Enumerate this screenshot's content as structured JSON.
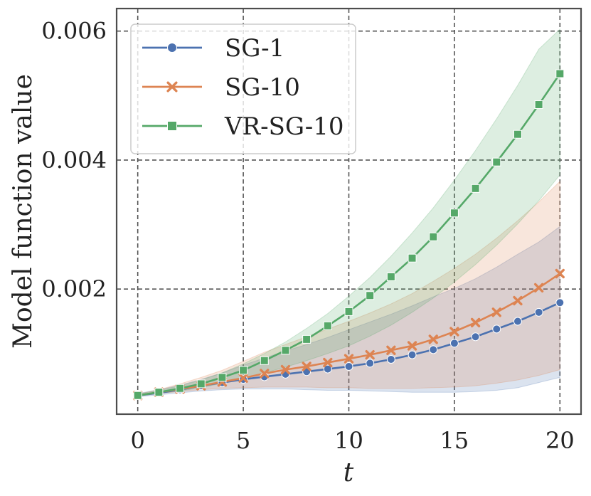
{
  "chart_data": {
    "type": "line",
    "title": "",
    "xlabel": "t",
    "ylabel": "Model function value",
    "xlim": [
      -1,
      21
    ],
    "ylim": [
      6e-05,
      0.00635
    ],
    "xticks": [
      0,
      5,
      10,
      15,
      20
    ],
    "xtick_labels": [
      "0",
      "5",
      "10",
      "15",
      "20"
    ],
    "yticks": [
      0.002,
      0.004,
      0.006
    ],
    "ytick_labels": [
      "0.002",
      "0.004",
      "0.006"
    ],
    "grid": true,
    "legend_position": "top-left",
    "x": [
      0,
      1,
      2,
      3,
      4,
      5,
      6,
      7,
      8,
      9,
      10,
      11,
      12,
      13,
      14,
      15,
      16,
      17,
      18,
      19,
      20
    ],
    "series": [
      {
        "name": "SG-1",
        "color": "#4c72b0",
        "marker": "circle",
        "values": [
          0.00035,
          0.00039,
          0.00044,
          0.0005,
          0.00055,
          0.0006,
          0.00064,
          0.00068,
          0.00072,
          0.00076,
          0.0008,
          0.00085,
          0.00091,
          0.00098,
          0.00106,
          0.00116,
          0.00126,
          0.00138,
          0.0015,
          0.00164,
          0.00179
        ],
        "lower": [
          0.00033,
          0.00036,
          0.00039,
          0.00042,
          0.00044,
          0.00045,
          0.00045,
          0.00045,
          0.00044,
          0.00043,
          0.00043,
          0.00042,
          0.00041,
          0.0004,
          0.0004,
          0.0004,
          0.00041,
          0.00043,
          0.00047,
          0.00055,
          0.00063
        ],
        "upper": [
          0.00038,
          0.00044,
          0.00051,
          0.0006,
          0.0007,
          0.00082,
          0.00093,
          0.00104,
          0.00114,
          0.00125,
          0.00137,
          0.00149,
          0.00161,
          0.00174,
          0.00188,
          0.00201,
          0.00216,
          0.00234,
          0.00254,
          0.00273,
          0.00297
        ]
      },
      {
        "name": "SG-10",
        "color": "#dd8452",
        "marker": "x",
        "values": [
          0.00035,
          0.0004,
          0.00045,
          0.0005,
          0.00056,
          0.00062,
          0.00069,
          0.00075,
          0.0008,
          0.00086,
          0.00092,
          0.00098,
          0.00105,
          0.00112,
          0.00122,
          0.00134,
          0.00148,
          0.00164,
          0.00182,
          0.00202,
          0.00224
        ],
        "lower": [
          0.00034,
          0.00038,
          0.00041,
          0.00044,
          0.00046,
          0.00047,
          0.00048,
          0.00048,
          0.00048,
          0.00047,
          0.00047,
          0.00046,
          0.00046,
          0.00046,
          0.00047,
          0.00048,
          0.0005,
          0.00054,
          0.00059,
          0.00066,
          0.00075
        ],
        "upper": [
          0.00037,
          0.00044,
          0.00053,
          0.00063,
          0.00074,
          0.00088,
          0.00102,
          0.00114,
          0.00126,
          0.00138,
          0.0015,
          0.00163,
          0.00177,
          0.00193,
          0.00212,
          0.00232,
          0.00254,
          0.00279,
          0.00306,
          0.00335,
          0.00367
        ]
      },
      {
        "name": "VR-SG-10",
        "color": "#55a868",
        "marker": "square",
        "values": [
          0.00035,
          0.0004,
          0.00046,
          0.00053,
          0.00063,
          0.00074,
          0.00089,
          0.00105,
          0.00122,
          0.00143,
          0.00165,
          0.0019,
          0.00219,
          0.00248,
          0.00281,
          0.00318,
          0.00356,
          0.00397,
          0.0044,
          0.00486,
          0.00534
        ],
        "lower": [
          0.00034,
          0.00038,
          0.00042,
          0.00047,
          0.00054,
          0.00061,
          0.0007,
          0.00079,
          0.00089,
          0.001,
          0.00112,
          0.00127,
          0.00144,
          0.00164,
          0.00186,
          0.00211,
          0.00238,
          0.00268,
          0.00301,
          0.00337,
          0.00377
        ],
        "upper": [
          0.00037,
          0.00043,
          0.0005,
          0.00059,
          0.0007,
          0.00084,
          0.001,
          0.00118,
          0.00139,
          0.00162,
          0.00189,
          0.00218,
          0.00251,
          0.00287,
          0.00326,
          0.00369,
          0.00415,
          0.00464,
          0.00516,
          0.00572,
          0.00603
        ]
      }
    ]
  }
}
